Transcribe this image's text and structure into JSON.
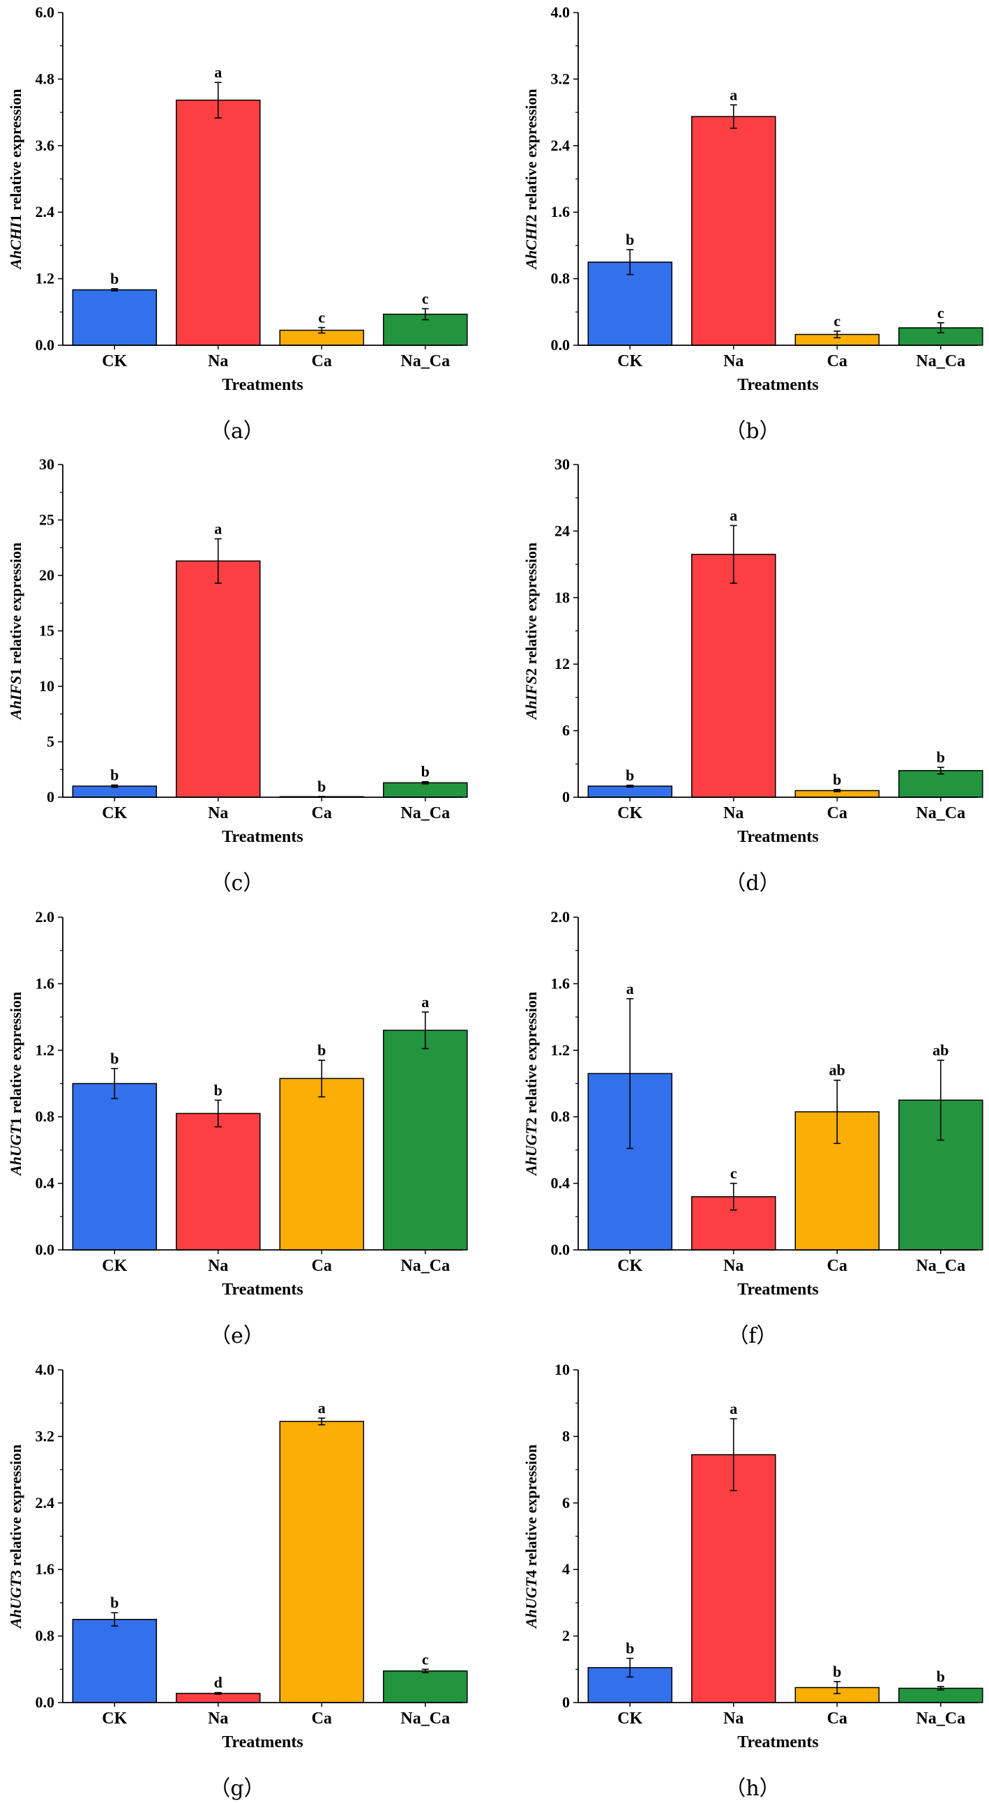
{
  "chart_data": [
    {
      "type": "bar",
      "panel": "（a）",
      "gene_prefix": "AhCHI",
      "gene_suffix": "1",
      "ylabel_rest": " relative expression",
      "xlabel": "Treatments",
      "categories": [
        "CK",
        "Na",
        "Ca",
        "Na_Ca"
      ],
      "values": [
        1.0,
        4.42,
        0.27,
        0.56
      ],
      "errors": [
        0.02,
        0.32,
        0.05,
        0.1
      ],
      "significance": [
        "b",
        "a",
        "c",
        "c"
      ],
      "ylim": [
        0,
        6.0
      ],
      "yticks": [
        "0.0",
        "1.2",
        "2.4",
        "3.6",
        "4.8",
        "6.0"
      ]
    },
    {
      "type": "bar",
      "panel": "（b）",
      "gene_prefix": "AhCHI",
      "gene_suffix": "2",
      "ylabel_rest": " relative expression",
      "xlabel": "Treatments",
      "categories": [
        "CK",
        "Na",
        "Ca",
        "Na_Ca"
      ],
      "values": [
        1.0,
        2.75,
        0.13,
        0.21
      ],
      "errors": [
        0.15,
        0.14,
        0.04,
        0.06
      ],
      "significance": [
        "b",
        "a",
        "c",
        "c"
      ],
      "ylim": [
        0,
        4.0
      ],
      "yticks": [
        "0.0",
        "0.8",
        "1.6",
        "2.4",
        "3.2",
        "4.0"
      ]
    },
    {
      "type": "bar",
      "panel": "（c）",
      "gene_prefix": "AhIFS",
      "gene_suffix": "1",
      "ylabel_rest": " relative expression",
      "xlabel": "Treatments",
      "categories": [
        "CK",
        "Na",
        "Ca",
        "Na_Ca"
      ],
      "values": [
        1.0,
        21.3,
        0.05,
        1.3
      ],
      "errors": [
        0.1,
        2.0,
        0.02,
        0.1
      ],
      "significance": [
        "b",
        "a",
        "b",
        "b"
      ],
      "ylim": [
        0,
        30
      ],
      "yticks": [
        "0",
        "5",
        "10",
        "15",
        "20",
        "25",
        "30"
      ]
    },
    {
      "type": "bar",
      "panel": "（d）",
      "gene_prefix": "AhIFS",
      "gene_suffix": "2",
      "ylabel_rest": " relative expression",
      "xlabel": "Treatments",
      "categories": [
        "CK",
        "Na",
        "Ca",
        "Na_Ca"
      ],
      "values": [
        1.0,
        21.9,
        0.6,
        2.4
      ],
      "errors": [
        0.08,
        2.6,
        0.1,
        0.3
      ],
      "significance": [
        "b",
        "a",
        "b",
        "b"
      ],
      "ylim": [
        0,
        30
      ],
      "yticks": [
        "0",
        "6",
        "12",
        "18",
        "24",
        "30"
      ]
    },
    {
      "type": "bar",
      "panel": "（e）",
      "gene_prefix": "AhUGT",
      "gene_suffix": "1",
      "ylabel_rest": " relative expression",
      "xlabel": "Treatments",
      "categories": [
        "CK",
        "Na",
        "Ca",
        "Na_Ca"
      ],
      "values": [
        1.0,
        0.82,
        1.03,
        1.32
      ],
      "errors": [
        0.09,
        0.08,
        0.11,
        0.11
      ],
      "significance": [
        "b",
        "b",
        "b",
        "a"
      ],
      "ylim": [
        0,
        2.0
      ],
      "yticks": [
        "0.0",
        "0.4",
        "0.8",
        "1.2",
        "1.6",
        "2.0"
      ]
    },
    {
      "type": "bar",
      "panel": "（f）",
      "gene_prefix": "AhUGT",
      "gene_suffix": "2",
      "ylabel_rest": " relative expression",
      "xlabel": "Treatments",
      "categories": [
        "CK",
        "Na",
        "Ca",
        "Na_Ca"
      ],
      "values": [
        1.06,
        0.32,
        0.83,
        0.9
      ],
      "errors": [
        0.45,
        0.08,
        0.19,
        0.24
      ],
      "significance": [
        "a",
        "c",
        "ab",
        "ab"
      ],
      "ylim": [
        0,
        2.0
      ],
      "yticks": [
        "0.0",
        "0.4",
        "0.8",
        "1.2",
        "1.6",
        "2.0"
      ]
    },
    {
      "type": "bar",
      "panel": "（g）",
      "gene_prefix": "AhUGT",
      "gene_suffix": "3",
      "ylabel_rest": " relative expression",
      "xlabel": "Treatments",
      "categories": [
        "CK",
        "Na",
        "Ca",
        "Na_Ca"
      ],
      "values": [
        1.0,
        0.11,
        3.38,
        0.38
      ],
      "errors": [
        0.08,
        0.01,
        0.04,
        0.02
      ],
      "significance": [
        "b",
        "d",
        "a",
        "c"
      ],
      "ylim": [
        0,
        4.0
      ],
      "yticks": [
        "0.0",
        "0.8",
        "1.6",
        "2.4",
        "3.2",
        "4.0"
      ]
    },
    {
      "type": "bar",
      "panel": "（h）",
      "gene_prefix": "AhUGT",
      "gene_suffix": "4",
      "ylabel_rest": " relative expression",
      "xlabel": "Treatments",
      "categories": [
        "CK",
        "Na",
        "Ca",
        "Na_Ca"
      ],
      "values": [
        1.05,
        7.45,
        0.45,
        0.43
      ],
      "errors": [
        0.28,
        1.08,
        0.18,
        0.05
      ],
      "significance": [
        "b",
        "a",
        "b",
        "b"
      ],
      "ylim": [
        0,
        10
      ],
      "yticks": [
        "0",
        "2",
        "4",
        "6",
        "8",
        "10"
      ]
    }
  ],
  "colors": {
    "CK": "#3370eb",
    "Na": "#fc3f43",
    "Ca": "#fbae06",
    "Na_Ca": "#22953e",
    "outline": "#000000"
  }
}
